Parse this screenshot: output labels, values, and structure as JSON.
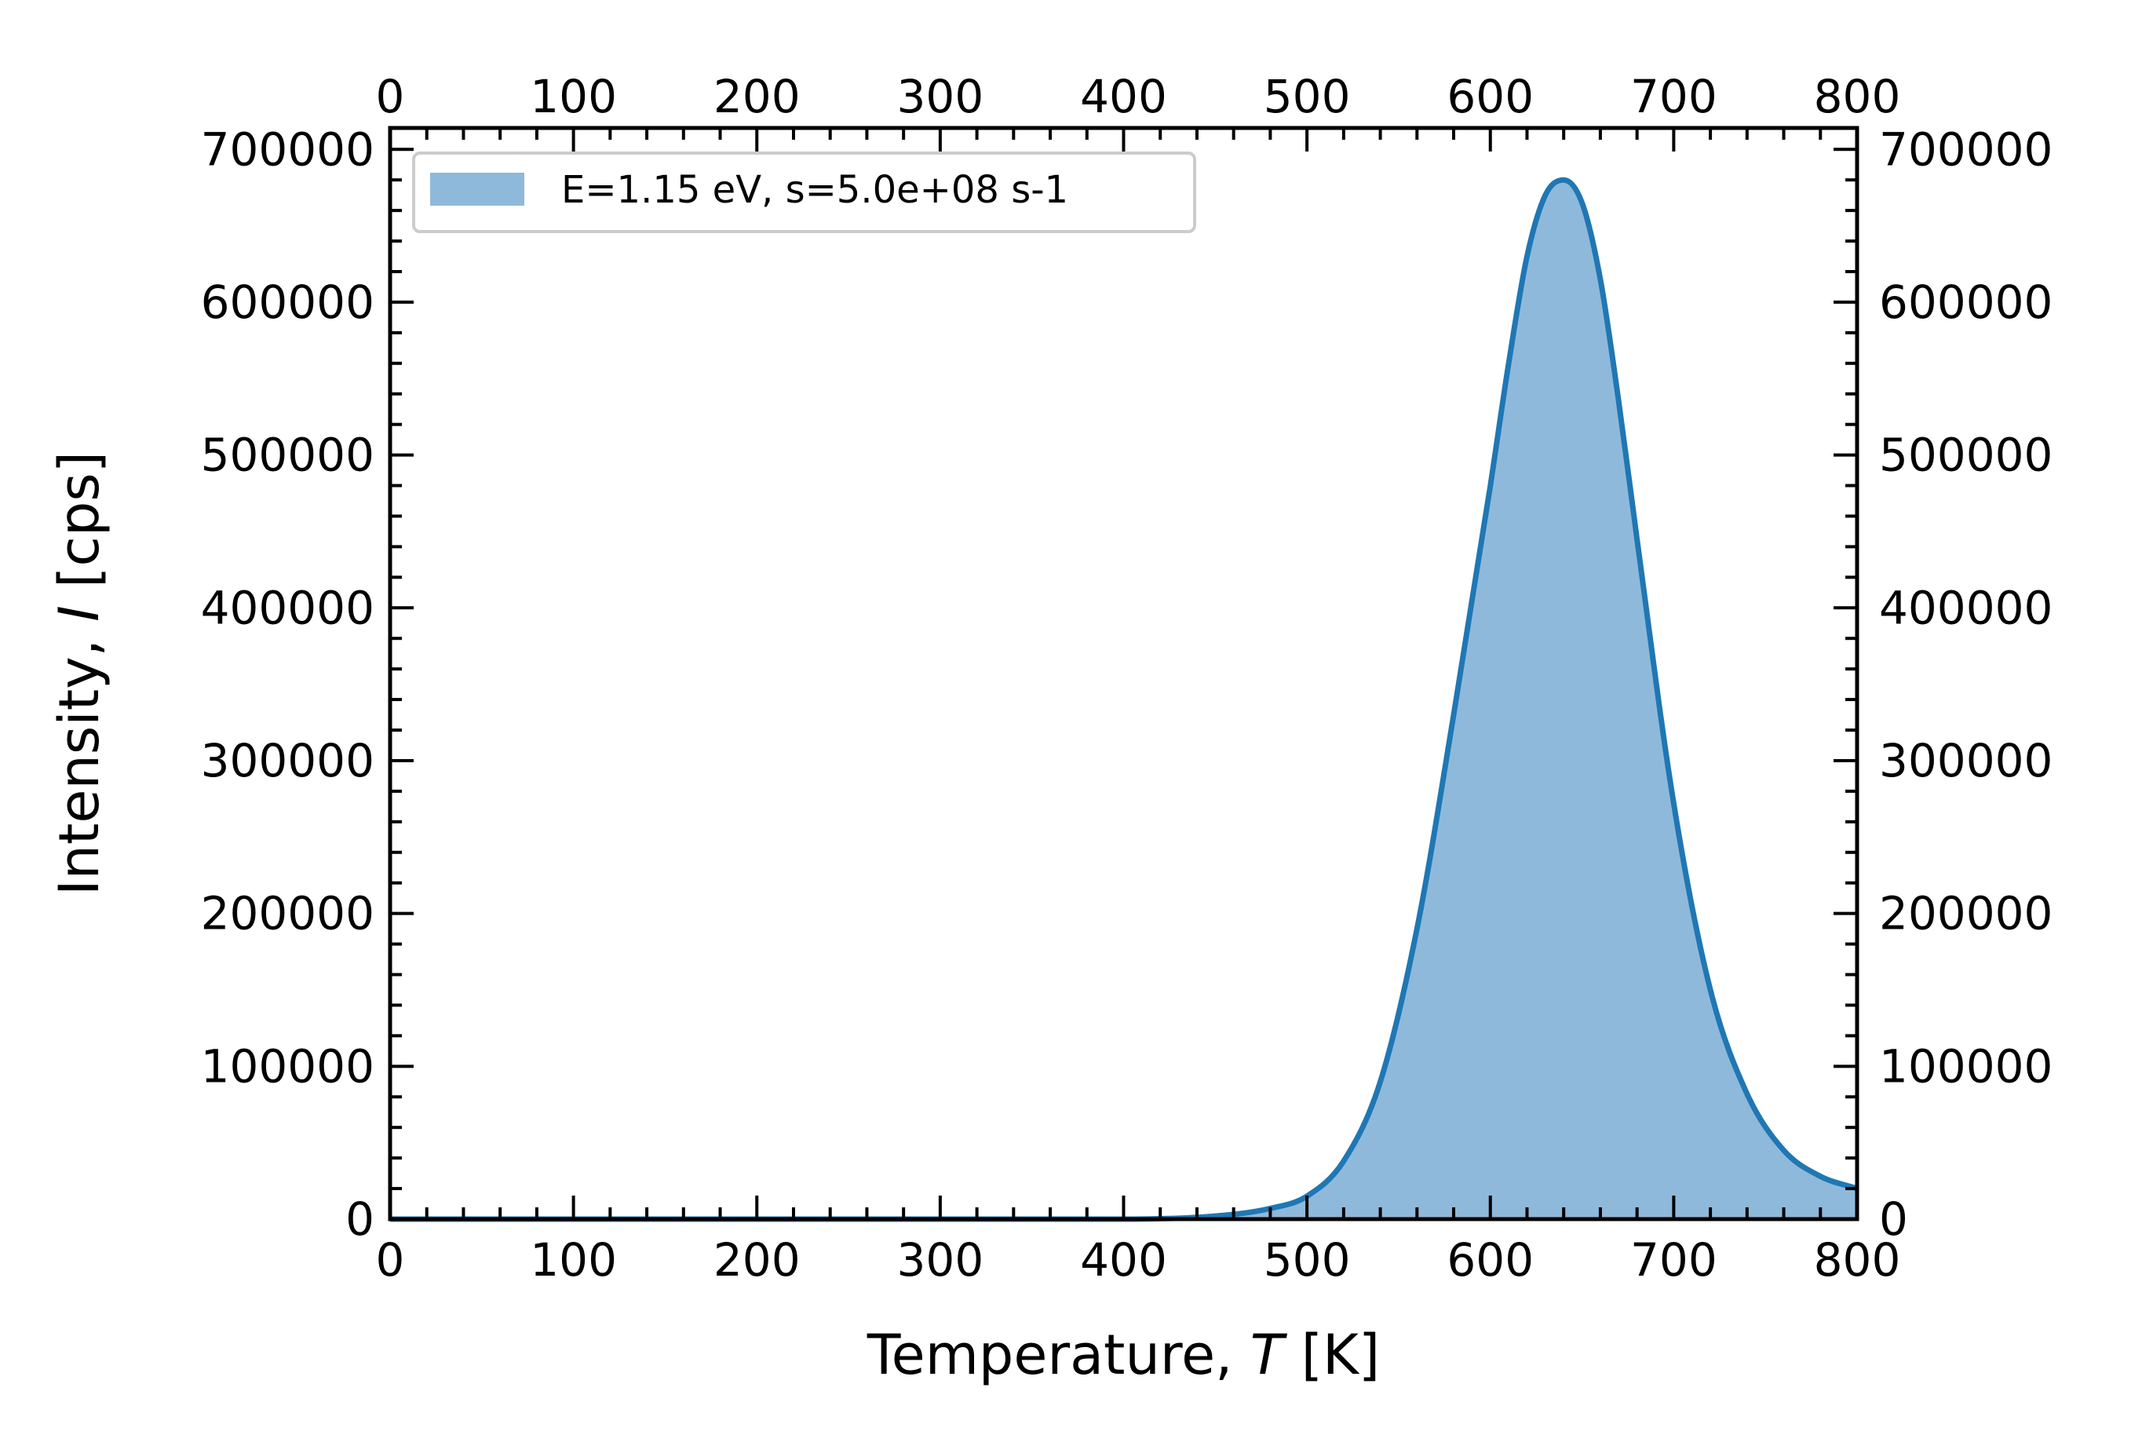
{
  "chart_data": {
    "type": "area",
    "title": "",
    "xlabel_prefix": "Temperature, ",
    "xlabel_var": "T",
    "xlabel_unit": " [K]",
    "ylabel_prefix": "Intensity, ",
    "ylabel_var": "I",
    "ylabel_unit": " [cps]",
    "xlim": [
      0,
      800
    ],
    "ylim": [
      0,
      714000
    ],
    "x_ticks": [
      "0",
      "100",
      "200",
      "300",
      "400",
      "500",
      "600",
      "700",
      "800"
    ],
    "y_ticks": [
      "0",
      "100000",
      "200000",
      "300000",
      "400000",
      "500000",
      "600000",
      "700000"
    ],
    "grid": false,
    "legend": {
      "position": "top-left",
      "entries": [
        "E=1.15 eV, s=5.0e+08 s-1"
      ]
    },
    "colors": {
      "line": "#1f77b4",
      "fill": "#8fb9da"
    },
    "series": [
      {
        "name": "E=1.15 eV, s=5.0e+08 s-1",
        "x": [
          0,
          100,
          200,
          300,
          400,
          450,
          480,
          500,
          520,
          540,
          560,
          580,
          600,
          610,
          620,
          630,
          640,
          650,
          660,
          670,
          680,
          700,
          720,
          740,
          760,
          780,
          800
        ],
        "y": [
          0,
          0,
          0,
          0,
          0,
          2000,
          7000,
          15000,
          38000,
          90000,
          190000,
          330000,
          480000,
          560000,
          630000,
          670000,
          680000,
          665000,
          615000,
          535000,
          445000,
          272000,
          150000,
          82000,
          45000,
          28000,
          20000
        ]
      }
    ]
  }
}
